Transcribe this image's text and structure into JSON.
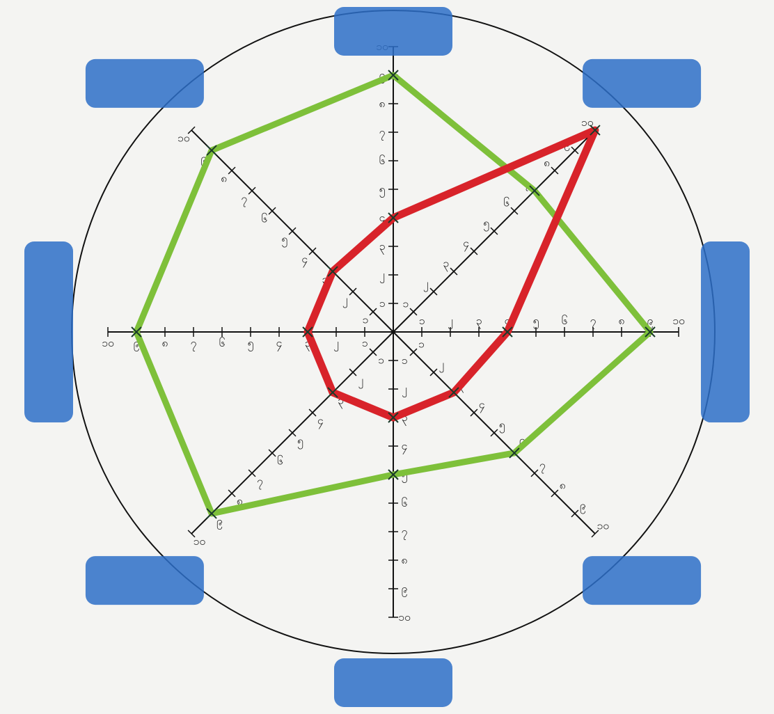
{
  "chart_data": {
    "type": "radar",
    "scale": {
      "min": 0,
      "max": 10,
      "ticks": [
        1,
        2,
        3,
        4,
        5,
        6,
        7,
        8,
        9,
        10
      ]
    },
    "tick_labels": [
      "၁",
      "၂",
      "၃",
      "၄",
      "၅",
      "၆",
      "၇",
      "၈",
      "၉",
      "၁၀"
    ],
    "axes": [
      {
        "label": ""
      },
      {
        "label": ""
      },
      {
        "label": ""
      },
      {
        "label": ""
      },
      {
        "label": ""
      },
      {
        "label": ""
      },
      {
        "label": ""
      },
      {
        "label": ""
      }
    ],
    "series": [
      {
        "values": [
          9,
          7,
          9,
          6,
          5,
          9,
          9,
          9
        ]
      },
      {
        "values": [
          4,
          10,
          4,
          3,
          3,
          3,
          3,
          3
        ]
      }
    ],
    "colors": {
      "outer": "#7ec03a",
      "inner": "#d8232a",
      "labels_bg": "#2d6fc8"
    }
  }
}
